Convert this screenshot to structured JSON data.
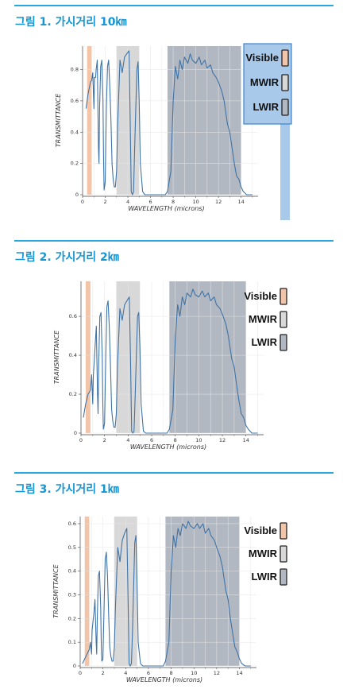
{
  "chart_data": [
    {
      "type": "line",
      "title": "그림 1. 가시거리 10㎞",
      "xlabel": "WAVELENGTH (microns)",
      "ylabel": "TRANSMITTANCE",
      "xlim": [
        0,
        15.5
      ],
      "ylim": [
        0,
        0.95
      ],
      "xticks": [
        "0",
        "2",
        "4",
        "6",
        "8",
        "10",
        "12",
        "14"
      ],
      "yticks": [
        "0",
        "0.2",
        "0.4",
        "0.6",
        "0.8"
      ],
      "ytick_values": [
        0,
        0.2,
        0.4,
        0.6,
        0.8
      ],
      "grid": true,
      "legend_placement": "top-right",
      "legend_highlighted": true,
      "bands": [
        {
          "name": "Visible",
          "from": 0.4,
          "to": 0.8,
          "color": "#f2c4a8"
        },
        {
          "name": "MWIR",
          "from": 3.0,
          "to": 5.0,
          "color": "#d8d8d8"
        },
        {
          "name": "LWIR",
          "from": 7.5,
          "to": 14.0,
          "color": "#b2b8c2"
        }
      ],
      "series": [
        {
          "x": [
            0.3,
            0.5,
            0.7,
            0.8,
            0.9,
            1.0,
            1.05,
            1.15,
            1.2,
            1.3,
            1.4,
            1.45,
            1.5,
            1.6,
            1.7,
            1.8,
            1.85,
            1.9,
            2.0,
            2.1,
            2.2,
            2.3,
            2.4,
            2.5,
            2.6,
            2.7,
            2.8,
            2.9,
            3.0,
            3.1,
            3.3,
            3.5,
            3.7,
            3.9,
            4.1,
            4.2,
            4.3,
            4.4,
            4.5,
            4.6,
            4.8,
            4.9,
            5.0,
            5.1,
            5.3,
            5.5,
            6.0,
            6.5,
            7.0,
            7.3,
            7.5,
            7.8,
            8.0,
            8.2,
            8.4,
            8.6,
            8.8,
            9.0,
            9.3,
            9.5,
            9.7,
            10.0,
            10.3,
            10.5,
            10.8,
            11.0,
            11.3,
            11.5,
            11.8,
            12.0,
            12.3,
            12.5,
            12.8,
            13.0,
            13.2,
            13.4,
            13.6,
            13.8,
            14.0,
            14.2,
            14.5,
            15.0
          ],
          "y": [
            0.55,
            0.65,
            0.72,
            0.73,
            0.78,
            0.55,
            0.75,
            0.75,
            0.8,
            0.86,
            0.3,
            0.2,
            0.55,
            0.82,
            0.86,
            0.6,
            0.25,
            0.03,
            0.08,
            0.55,
            0.82,
            0.86,
            0.7,
            0.5,
            0.2,
            0.1,
            0.05,
            0.05,
            0.15,
            0.45,
            0.86,
            0.78,
            0.88,
            0.9,
            0.92,
            0.5,
            0.02,
            0.0,
            0.02,
            0.3,
            0.8,
            0.85,
            0.6,
            0.2,
            0.02,
            0.0,
            0.0,
            0.0,
            0.0,
            0.0,
            0.02,
            0.15,
            0.6,
            0.82,
            0.74,
            0.86,
            0.8,
            0.88,
            0.84,
            0.9,
            0.86,
            0.84,
            0.88,
            0.83,
            0.86,
            0.81,
            0.83,
            0.78,
            0.75,
            0.72,
            0.66,
            0.6,
            0.45,
            0.4,
            0.3,
            0.2,
            0.12,
            0.1,
            0.05,
            0.02,
            0.0,
            0.0
          ]
        }
      ]
    },
    {
      "type": "line",
      "title": "그림 2. 가시거리 2㎞",
      "xlabel": "WAVELENGTH (microns)",
      "ylabel": "TRANSMITTANCE",
      "xlim": [
        0,
        15.5
      ],
      "ylim": [
        0,
        0.78
      ],
      "xticks": [
        "0",
        "2",
        "4",
        "6",
        "8",
        "10",
        "12",
        "14"
      ],
      "yticks": [
        "0",
        "0.2",
        "0.4",
        "0.6"
      ],
      "ytick_values": [
        0,
        0.2,
        0.4,
        0.6
      ],
      "grid": true,
      "legend_placement": "top-right",
      "legend_highlighted": false,
      "bands": [
        {
          "name": "Visible",
          "from": 0.4,
          "to": 0.8,
          "color": "#f2c4a8"
        },
        {
          "name": "MWIR",
          "from": 3.0,
          "to": 5.0,
          "color": "#d8d8d8"
        },
        {
          "name": "LWIR",
          "from": 7.5,
          "to": 14.0,
          "color": "#b2b8c2"
        }
      ],
      "series": [
        {
          "x": [
            0.2,
            0.4,
            0.6,
            0.8,
            0.9,
            1.0,
            1.05,
            1.15,
            1.2,
            1.3,
            1.4,
            1.45,
            1.5,
            1.6,
            1.7,
            1.8,
            1.85,
            1.9,
            2.0,
            2.1,
            2.2,
            2.3,
            2.4,
            2.5,
            2.6,
            2.7,
            2.8,
            2.9,
            3.0,
            3.1,
            3.3,
            3.5,
            3.7,
            3.9,
            4.1,
            4.2,
            4.3,
            4.4,
            4.5,
            4.6,
            4.8,
            4.9,
            5.0,
            5.1,
            5.3,
            5.5,
            6.0,
            6.5,
            7.0,
            7.3,
            7.5,
            7.8,
            8.0,
            8.2,
            8.4,
            8.6,
            8.8,
            9.0,
            9.3,
            9.5,
            9.7,
            10.0,
            10.3,
            10.5,
            10.8,
            11.0,
            11.3,
            11.5,
            11.8,
            12.0,
            12.3,
            12.5,
            12.8,
            13.0,
            13.2,
            13.4,
            13.6,
            13.8,
            14.0,
            14.2,
            14.5,
            15.0
          ],
          "y": [
            0.08,
            0.15,
            0.2,
            0.22,
            0.3,
            0.15,
            0.3,
            0.4,
            0.45,
            0.55,
            0.2,
            0.1,
            0.35,
            0.6,
            0.62,
            0.4,
            0.15,
            0.02,
            0.05,
            0.4,
            0.65,
            0.68,
            0.55,
            0.35,
            0.12,
            0.06,
            0.03,
            0.03,
            0.1,
            0.35,
            0.64,
            0.58,
            0.66,
            0.68,
            0.7,
            0.4,
            0.01,
            0.0,
            0.01,
            0.2,
            0.6,
            0.62,
            0.45,
            0.15,
            0.01,
            0.0,
            0.0,
            0.0,
            0.0,
            0.0,
            0.02,
            0.12,
            0.48,
            0.66,
            0.6,
            0.7,
            0.66,
            0.72,
            0.7,
            0.74,
            0.71,
            0.7,
            0.73,
            0.7,
            0.72,
            0.68,
            0.7,
            0.66,
            0.64,
            0.61,
            0.56,
            0.5,
            0.38,
            0.34,
            0.25,
            0.17,
            0.1,
            0.08,
            0.04,
            0.02,
            0.0,
            0.0
          ]
        }
      ]
    },
    {
      "type": "line",
      "title": "그림 3. 가시거리 1㎞",
      "xlabel": "WAVELENGTH (microns)",
      "ylabel": "TRANSMITTANCE",
      "xlim": [
        0,
        15.5
      ],
      "ylim": [
        0,
        0.63
      ],
      "xticks": [
        "0",
        "2",
        "4",
        "6",
        "8",
        "10",
        "12",
        "14"
      ],
      "yticks": [
        "0",
        "0.1",
        "0.2",
        "0.3",
        "0.4",
        "0.5",
        "0.6"
      ],
      "ytick_values": [
        0,
        0.1,
        0.2,
        0.3,
        0.4,
        0.5,
        0.6
      ],
      "grid": true,
      "legend_placement": "top-right",
      "legend_highlighted": false,
      "bands": [
        {
          "name": "Visible",
          "from": 0.4,
          "to": 0.8,
          "color": "#f2c4a8"
        },
        {
          "name": "MWIR",
          "from": 3.0,
          "to": 5.0,
          "color": "#d8d8d8"
        },
        {
          "name": "LWIR",
          "from": 7.5,
          "to": 14.0,
          "color": "#b2b8c2"
        }
      ],
      "series": [
        {
          "x": [
            0.2,
            0.4,
            0.6,
            0.8,
            0.9,
            1.0,
            1.05,
            1.15,
            1.2,
            1.3,
            1.4,
            1.45,
            1.5,
            1.6,
            1.7,
            1.8,
            1.85,
            1.9,
            2.0,
            2.1,
            2.2,
            2.3,
            2.4,
            2.5,
            2.6,
            2.7,
            2.8,
            2.9,
            3.0,
            3.1,
            3.3,
            3.5,
            3.7,
            3.9,
            4.1,
            4.2,
            4.3,
            4.4,
            4.5,
            4.6,
            4.8,
            4.9,
            5.0,
            5.1,
            5.3,
            5.5,
            6.0,
            6.5,
            7.0,
            7.3,
            7.5,
            7.8,
            8.0,
            8.2,
            8.4,
            8.6,
            8.8,
            9.0,
            9.3,
            9.5,
            9.7,
            10.0,
            10.3,
            10.5,
            10.8,
            11.0,
            11.3,
            11.5,
            11.8,
            12.0,
            12.3,
            12.5,
            12.8,
            13.0,
            13.2,
            13.4,
            13.6,
            13.8,
            14.0,
            14.2,
            14.5,
            15.0
          ],
          "y": [
            0.01,
            0.03,
            0.05,
            0.07,
            0.1,
            0.05,
            0.15,
            0.2,
            0.22,
            0.28,
            0.1,
            0.05,
            0.2,
            0.38,
            0.4,
            0.25,
            0.1,
            0.02,
            0.03,
            0.25,
            0.45,
            0.48,
            0.38,
            0.22,
            0.08,
            0.04,
            0.02,
            0.02,
            0.08,
            0.25,
            0.5,
            0.44,
            0.53,
            0.56,
            0.58,
            0.3,
            0.01,
            0.0,
            0.01,
            0.15,
            0.52,
            0.55,
            0.35,
            0.1,
            0.01,
            0.0,
            0.0,
            0.0,
            0.0,
            0.0,
            0.02,
            0.1,
            0.4,
            0.55,
            0.5,
            0.58,
            0.55,
            0.6,
            0.58,
            0.61,
            0.59,
            0.58,
            0.6,
            0.58,
            0.6,
            0.56,
            0.58,
            0.55,
            0.53,
            0.5,
            0.46,
            0.42,
            0.32,
            0.28,
            0.2,
            0.14,
            0.08,
            0.06,
            0.03,
            0.01,
            0.0,
            0.0
          ]
        }
      ]
    }
  ]
}
